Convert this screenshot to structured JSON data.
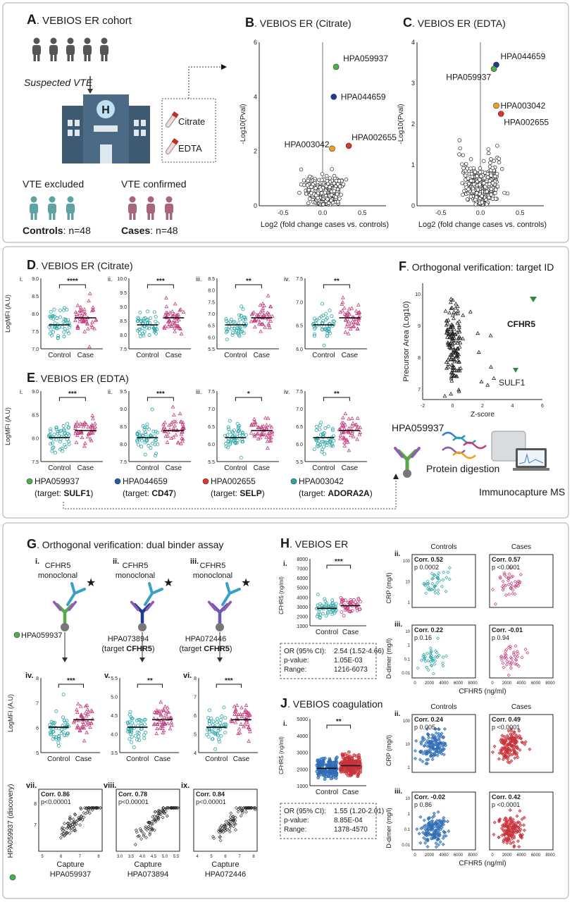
{
  "panel_a": {
    "label": "A",
    "title": ". VEBIOS ER cohort",
    "suspected": "Suspected VTE",
    "tubes": [
      "Citrate",
      "EDTA"
    ],
    "groups": [
      {
        "status": "VTE excluded",
        "name": "Controls",
        "n": ": n=48"
      },
      {
        "status": "VTE confirmed",
        "name": "Cases",
        "n": ": n=48"
      }
    ]
  },
  "panel_b": {
    "label": "B",
    "title": ". VEBIOS ER (Citrate)",
    "y_label": "-Log10(Pval)",
    "x_label": "Log2 (fold change cases vs. controls)",
    "yticks": [
      "0",
      "2",
      "4",
      "6"
    ],
    "xticks": [
      "-0.5",
      "0.0",
      "0.5"
    ],
    "hits": [
      "HPA059937",
      "HPA044659",
      "HPA002655",
      "HPA003042"
    ]
  },
  "panel_c": {
    "label": "C",
    "title": ". VEBIOS ER (EDTA)",
    "y_label": "-Log10(Pval)",
    "x_label": "Log2 (fold change cases vs. controls)",
    "yticks": [
      "0",
      "1",
      "2",
      "3",
      "4"
    ],
    "xticks": [
      "-0.5",
      "0.0",
      "0.5"
    ],
    "hits": [
      "HPA044659",
      "HPA059937",
      "HPA003042",
      "HPA002655"
    ]
  },
  "panel_d": {
    "label": "D",
    "title": ". VEBIOS ER (Citrate)",
    "y_label": "LogMFI (A.U)",
    "groups": [
      "Control",
      "Case"
    ],
    "plots": [
      {
        "roman": "i.",
        "yticks": [
          "7.0",
          "7.5",
          "8.0",
          "8.5",
          "9.0"
        ],
        "sig": "****"
      },
      {
        "roman": "ii.",
        "yticks": [
          "7.5",
          "8.0",
          "8.5",
          "9.0",
          "9.5",
          "10.0"
        ],
        "sig": "***"
      },
      {
        "roman": "iii.",
        "yticks": [
          "5.5",
          "6.0",
          "6.5",
          "7.0",
          "7.5",
          "8.0",
          "8.5"
        ],
        "sig": "**"
      },
      {
        "roman": "iv.",
        "yticks": [
          "6.0",
          "6.5",
          "7.0",
          "7.5"
        ],
        "sig": "**"
      }
    ]
  },
  "panel_e": {
    "label": "E",
    "title": ". VEBIOS ER (EDTA)",
    "y_label": "LogMFI (A.U)",
    "groups": [
      "Control",
      "Case"
    ],
    "plots": [
      {
        "roman": "i.",
        "yticks": [
          "7.5",
          "8.0",
          "8.5",
          "9.0"
        ],
        "sig": "***"
      },
      {
        "roman": "ii.",
        "yticks": [
          "7.5",
          "8.0",
          "8.5",
          "9.0",
          "9.5"
        ],
        "sig": "***"
      },
      {
        "roman": "iii.",
        "yticks": [
          "5.5",
          "6.0",
          "6.5",
          "7.0",
          "7.5"
        ],
        "sig": "*"
      },
      {
        "roman": "iv.",
        "yticks": [
          "5.5",
          "6.0",
          "6.5",
          "7.0",
          "7.5"
        ],
        "sig": "**"
      }
    ],
    "legend": {
      "prefix": "(target: ",
      "suffix": ")",
      "binders": [
        {
          "id": "HPA059937",
          "target": "SULF1"
        },
        {
          "id": "HPA044659",
          "target": "CD47"
        },
        {
          "id": "HPA002655",
          "target": "SELP"
        },
        {
          "id": "HPA003042",
          "target": "ADORA2A"
        }
      ]
    }
  },
  "panel_f": {
    "label": "F",
    "title": ". Orthogonal verification: target ID",
    "y_label": "Precursor Area (Log10)",
    "x_label": "Z-score",
    "yticks": [
      "7",
      "8",
      "9",
      "10"
    ],
    "xticks": [
      "-2",
      "0",
      "2",
      "4",
      "6"
    ],
    "hits": [
      "CFHR5",
      "SULF1"
    ],
    "binder": "HPA059937",
    "steps": [
      "Protein digestion",
      "Immunocapture MS"
    ]
  },
  "panel_g": {
    "label": "G",
    "title": ". Orthogonal verification: dual binder assay",
    "detection": [
      "CFHR5",
      "monoclonal"
    ],
    "assays": [
      {
        "roman": "i.",
        "capture": "HPA059937"
      },
      {
        "roman": "ii.",
        "capture": "HPA073894",
        "target": "CFHR5"
      },
      {
        "roman": "iii.",
        "capture": "HPA072446",
        "target": "CFHR5"
      }
    ],
    "target_prefix": "(target ",
    "target_suffix": ")",
    "y_label": "LogMFI (A.U)",
    "groups": [
      "Control",
      "Case"
    ],
    "plots": [
      {
        "roman": "iv.",
        "yticks": [
          "5",
          "6",
          "7",
          "8"
        ],
        "sig": "***"
      },
      {
        "roman": "v.",
        "yticks": [
          "3.5",
          "4.0",
          "4.5",
          "5.0",
          "5.5"
        ],
        "sig": "**"
      },
      {
        "roman": "vi.",
        "yticks": [
          "4",
          "5",
          "6",
          "7",
          "8"
        ],
        "sig": "***"
      }
    ],
    "corr_y_label": "HPA059937 (discovery)",
    "capture_label": "Capture",
    "corr": [
      {
        "roman": "vii.",
        "corr": "Corr. 0.86",
        "p": "p<0.00001",
        "xticks": [
          "5",
          "6",
          "7",
          "8"
        ],
        "yticks": [
          "7",
          "8"
        ]
      },
      {
        "roman": "viii.",
        "corr": "Corr. 0.78",
        "p": "p<0.00001",
        "xticks": [
          "3.0",
          "3.5",
          "4.0",
          "4.5",
          "5.0",
          "5.5"
        ]
      },
      {
        "roman": "ix.",
        "corr": "Corr. 0.84",
        "p": "p<0.00001",
        "xticks": [
          "4",
          "5",
          "6",
          "7",
          "8"
        ]
      }
    ]
  },
  "panel_h": {
    "label": "H",
    "title": ". VEBIOS ER",
    "roman": "i.",
    "y_label": "CFHR5 (ng/ml)",
    "groups": [
      "Control",
      "Case"
    ],
    "yticks": [
      "1000",
      "2000",
      "3000",
      "4000",
      "5000",
      "6000",
      "7000",
      "8000"
    ],
    "sig": "***",
    "stats": [
      [
        "OR (95% CI):",
        "2.54 (1.52-4.66)"
      ],
      [
        "p-value:",
        "1.05E-03"
      ],
      [
        "Range:",
        "1216-6073"
      ]
    ],
    "columns": [
      "Controls",
      "Cases"
    ],
    "rows": [
      {
        "roman": "ii.",
        "y_label": "CRP (mg/l)",
        "yticks": [
          "1",
          "10",
          "100"
        ],
        "cells": [
          {
            "corr": "Corr. 0.52",
            "p": "p 0.0002"
          },
          {
            "corr": "Corr. 0.57",
            "p": "p <0.0001"
          }
        ]
      },
      {
        "roman": "iii.",
        "y_label": "D-dimer (mg/l)",
        "yticks": [
          "0.01",
          "0.1",
          "1",
          "10"
        ],
        "cells": [
          {
            "corr": "Corr. 0.22",
            "p": "p 0.16"
          },
          {
            "corr": "Corr. -0.01",
            "p": "p 0.94"
          }
        ]
      }
    ],
    "xticks": [
      "0",
      "2000",
      "4000",
      "6000",
      "8000"
    ],
    "x_label": "CFHR5 (ng/ml)"
  },
  "panel_j": {
    "label": "J",
    "title": ". VEBIOS coagulation",
    "roman": "i.",
    "y_label": "CFHR5 (ng/ml)",
    "groups": [
      "Control",
      "Case"
    ],
    "yticks": [
      "1000",
      "2000",
      "3000",
      "4000",
      "5000"
    ],
    "sig": "**",
    "stats": [
      [
        "OR (95% CI):",
        "1.55 (1.20-2.01)"
      ],
      [
        "p-value:",
        "8.85E-04"
      ],
      [
        "Range:",
        "1378-4570"
      ]
    ],
    "columns": [
      "Controls",
      "Cases"
    ],
    "rows": [
      {
        "roman": "ii.",
        "y_label": "CRP (mg/l)",
        "yticks": [
          "1",
          "10",
          "100"
        ],
        "cells": [
          {
            "corr": "Corr. 0.24",
            "p": "p 0.005"
          },
          {
            "corr": "Corr. 0.49",
            "p": "p <0.0001"
          }
        ]
      },
      {
        "roman": "iii.",
        "y_label": "D-dimer (mg/l)",
        "yticks": [
          "0.01",
          "0.1",
          "1",
          "10"
        ],
        "cells": [
          {
            "corr": "Corr. -0.02",
            "p": "p 0.86"
          },
          {
            "corr": "Corr. 0.42",
            "p": "p <0.0001"
          }
        ]
      }
    ],
    "xticks": [
      "0",
      "2000",
      "4000",
      "6000",
      "8000"
    ],
    "x_label": "CFHR5 (ng/ml)"
  }
}
